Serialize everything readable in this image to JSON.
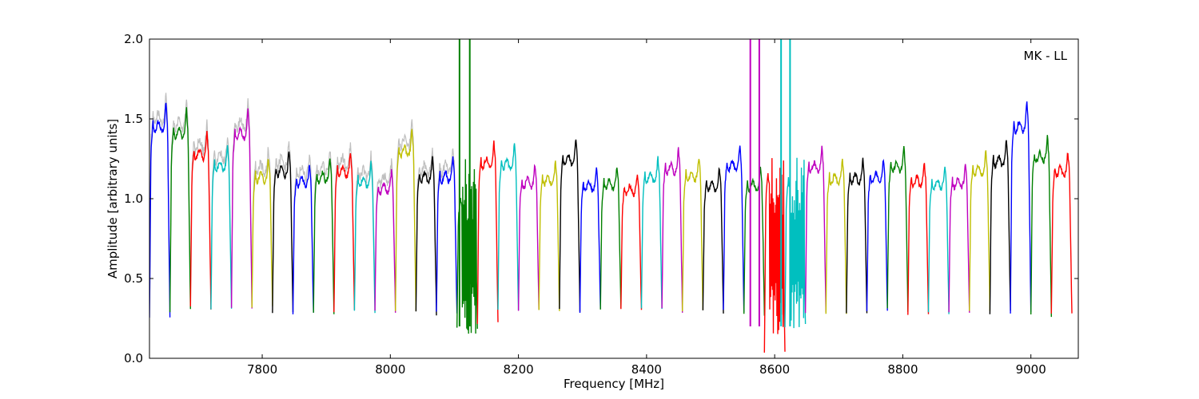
{
  "chart_data": {
    "type": "line",
    "title": "",
    "annotation": "MK - LL",
    "xlabel": "Frequency [MHz]",
    "ylabel": "Amplitude [arbitrary units]",
    "xlim": [
      7624,
      9074
    ],
    "ylim": [
      0.0,
      2.0
    ],
    "x_ticks": [
      7800,
      8000,
      8200,
      8400,
      8600,
      8800,
      9000
    ],
    "y_ticks": [
      0.0,
      0.5,
      1.0,
      1.5,
      2.0
    ],
    "x_tick_labels": [
      "7800",
      "8000",
      "8200",
      "8400",
      "8600",
      "8800",
      "9000"
    ],
    "y_tick_labels": [
      "0.0",
      "0.5",
      "1.0",
      "1.5",
      "2.0"
    ],
    "grid": false,
    "legend": "none",
    "background_trace_color": "#bfbfbf",
    "color_cycle": [
      "#0000ff",
      "#008000",
      "#ff0000",
      "#00bfbf",
      "#bf00bf",
      "#bfbf00",
      "#000000"
    ],
    "channel_width_mhz": 32,
    "channel_start_mhz": 7624,
    "channel_count": 45,
    "channel_peaks": [
      1.61,
      1.57,
      1.42,
      1.34,
      1.56,
      1.26,
      1.3,
      1.23,
      1.26,
      1.3,
      1.23,
      1.18,
      1.44,
      1.26,
      1.26,
      1.1,
      1.36,
      1.35,
      1.22,
      1.24,
      1.38,
      1.2,
      1.21,
      1.17,
      1.26,
      1.32,
      1.27,
      1.2,
      1.34,
      1.2,
      1.25,
      1.22,
      1.33,
      1.25,
      1.25,
      1.26,
      1.33,
      1.23,
      1.21,
      1.22,
      1.31,
      1.37,
      1.61,
      1.4,
      1.3
    ],
    "channel_dips": [
      0.25,
      0.3,
      0.31,
      0.31,
      0.31,
      0.33,
      0.28,
      0.28,
      0.28,
      0.29,
      0.29,
      0.29,
      0.29,
      0.28,
      0.28,
      0.2,
      0.23,
      0.3,
      0.3,
      0.3,
      0.3,
      0.3,
      0.3,
      0.3,
      0.3,
      0.3,
      0.29,
      0.29,
      0.29,
      0.28,
      0.03,
      0.2,
      0.28,
      0.29,
      0.29,
      0.29,
      0.3,
      0.28,
      0.29,
      0.29,
      0.29,
      0.29,
      0.29,
      0.27,
      0.27
    ],
    "rfi_channels": [
      15,
      30,
      31
    ],
    "vertical_spikes": [
      {
        "x": 8108,
        "color": "#008000"
      },
      {
        "x": 8124,
        "color": "#008000"
      },
      {
        "x": 8562,
        "color": "#bf00bf"
      },
      {
        "x": 8576,
        "color": "#bf00bf"
      },
      {
        "x": 8610,
        "color": "#00bfbf"
      },
      {
        "x": 8624,
        "color": "#00bfbf"
      }
    ]
  }
}
